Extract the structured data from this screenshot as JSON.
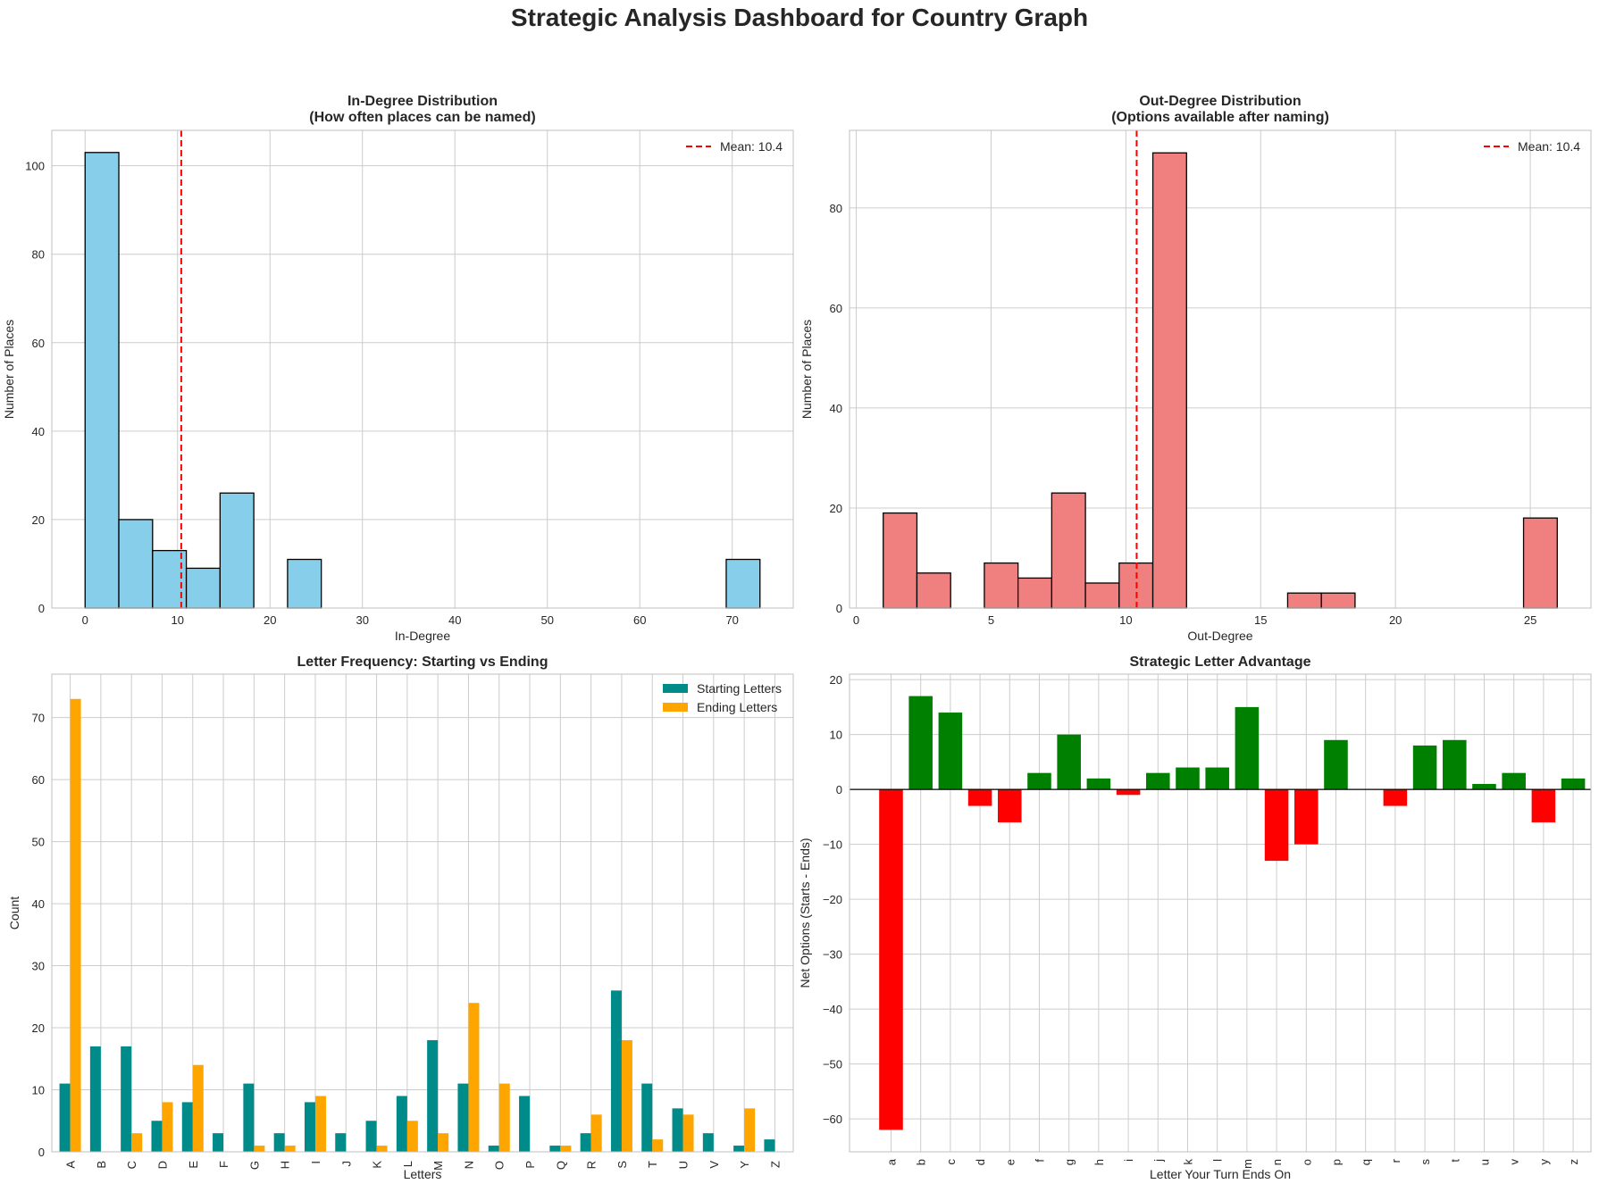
{
  "suptitle": "Strategic Analysis Dashboard for Country Graph",
  "chart_data": [
    {
      "type": "bar",
      "panel": "in-degree-histogram",
      "title": "In-Degree Distribution",
      "subtitle": "(How often places can be named)",
      "xlabel": "In-Degree",
      "ylabel": "Number of Places",
      "xlim": [
        -3.6,
        76.6
      ],
      "ylim": [
        0,
        108
      ],
      "xticks": [
        0,
        10,
        20,
        30,
        40,
        50,
        60,
        70
      ],
      "yticks": [
        0,
        20,
        40,
        60,
        80,
        100
      ],
      "bin_edges": [
        0,
        3.65,
        7.3,
        10.95,
        14.6,
        18.25,
        21.9,
        25.55,
        29.2,
        32.85,
        36.5,
        40.15,
        43.8,
        47.45,
        51.1,
        54.75,
        58.4,
        62.05,
        65.7,
        69.35,
        73
      ],
      "values": [
        103,
        20,
        13,
        9,
        26,
        0,
        11,
        0,
        0,
        0,
        0,
        0,
        0,
        0,
        0,
        0,
        0,
        0,
        0,
        11
      ],
      "bar_color": "#87CEEB",
      "mean_line": {
        "value": 10.4,
        "label": "Mean: 10.4",
        "color": "#ff0000",
        "style": "dashed"
      },
      "legend": "top-right",
      "grid": true
    },
    {
      "type": "bar",
      "panel": "out-degree-histogram",
      "title": "Out-Degree Distribution",
      "subtitle": "(Options available after naming)",
      "xlabel": "Out-Degree",
      "ylabel": "Number of Places",
      "xlim": [
        -0.25,
        27.25
      ],
      "ylim": [
        0,
        95.5
      ],
      "xticks": [
        0,
        5,
        10,
        15,
        20,
        25
      ],
      "yticks": [
        0,
        20,
        40,
        60,
        80
      ],
      "bin_edges": [
        1,
        2.25,
        3.5,
        4.75,
        6,
        7.25,
        8.5,
        9.75,
        11,
        12.25,
        13.5,
        14.75,
        16,
        17.25,
        18.5,
        19.75,
        21,
        22.25,
        23.5,
        24.75,
        26
      ],
      "values": [
        19,
        7,
        0,
        9,
        6,
        23,
        5,
        9,
        91,
        0,
        0,
        0,
        3,
        3,
        0,
        0,
        0,
        0,
        0,
        18
      ],
      "bar_color": "#F08080",
      "mean_line": {
        "value": 10.4,
        "label": "Mean: 10.4",
        "color": "#ff0000",
        "style": "dashed"
      },
      "legend": "top-right",
      "grid": true
    },
    {
      "type": "bar",
      "panel": "letter-frequency",
      "title": "Letter Frequency: Starting vs Ending",
      "xlabel": "Letters",
      "ylabel": "Count",
      "ylim": [
        0,
        77
      ],
      "yticks": [
        0,
        10,
        20,
        30,
        40,
        50,
        60,
        70
      ],
      "categories": [
        "A",
        "B",
        "C",
        "D",
        "E",
        "F",
        "G",
        "H",
        "I",
        "J",
        "K",
        "L",
        "M",
        "N",
        "O",
        "P",
        "Q",
        "R",
        "S",
        "T",
        "U",
        "V",
        "Y",
        "Z"
      ],
      "series": [
        {
          "name": "Starting Letters",
          "color": "#008B8B",
          "values": [
            11,
            17,
            17,
            5,
            8,
            3,
            11,
            3,
            8,
            3,
            5,
            9,
            18,
            11,
            1,
            9,
            1,
            3,
            26,
            11,
            7,
            3,
            1,
            2
          ]
        },
        {
          "name": "Ending Letters",
          "color": "#FFA500",
          "values": [
            73,
            0,
            3,
            8,
            14,
            0,
            1,
            1,
            9,
            0,
            1,
            5,
            3,
            24,
            11,
            0,
            1,
            6,
            18,
            2,
            6,
            0,
            7,
            0
          ]
        }
      ],
      "legend": "top-right",
      "grid": true
    },
    {
      "type": "bar",
      "panel": "letter-advantage",
      "title": "Strategic Letter Advantage",
      "xlabel": "Letter Your Turn Ends On",
      "ylabel": "Net Options (Starts - Ends)",
      "ylim": [
        -66,
        21
      ],
      "yticks": [
        20,
        10,
        0,
        -10,
        -20,
        -30,
        -40,
        -50,
        -60
      ],
      "categories": [
        "a",
        "b",
        "c",
        "d",
        "e",
        "f",
        "g",
        "h",
        "i",
        "j",
        "k",
        "l",
        "m",
        "n",
        "o",
        "p",
        "q",
        "r",
        "s",
        "t",
        "u",
        "v",
        "y",
        "z"
      ],
      "values": [
        -62,
        17,
        14,
        -3,
        -6,
        3,
        10,
        2,
        -1,
        3,
        4,
        4,
        15,
        -13,
        -10,
        9,
        0,
        -3,
        8,
        9,
        1,
        3,
        -6,
        2
      ],
      "positive_color": "#008000",
      "negative_color": "#ff0000",
      "zero_line": true,
      "grid": true
    }
  ]
}
